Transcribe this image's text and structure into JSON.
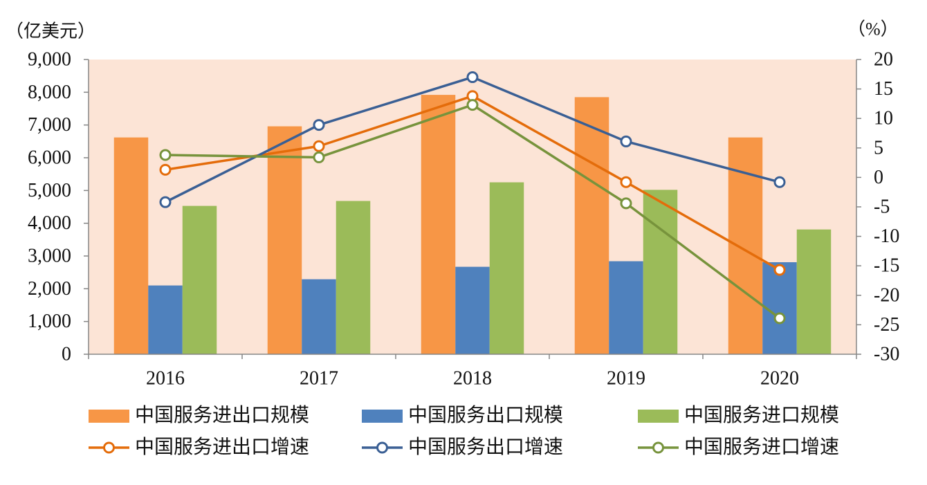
{
  "chart_data": {
    "type": "bar",
    "categories": [
      "2016",
      "2017",
      "2018",
      "2019",
      "2020"
    ],
    "left_axis": {
      "label": "（亿美元）",
      "ylim": [
        0,
        9000
      ],
      "tick_labels": [
        "0",
        "1,000",
        "2,000",
        "3,000",
        "4,000",
        "5,000",
        "6,000",
        "7,000",
        "8,000",
        "9,000"
      ]
    },
    "right_axis": {
      "label": "（%）",
      "ylim": [
        -30,
        20
      ],
      "tick_labels": [
        "-30",
        "-25",
        "-20",
        "-15",
        "-10",
        "-5",
        "0",
        "5",
        "10",
        "15",
        "20"
      ]
    },
    "series": [
      {
        "name": "中国服务进出口规模",
        "type": "bar",
        "axis": "left",
        "color": "#F79646",
        "values": [
          6620,
          6960,
          7920,
          7850,
          6620
        ]
      },
      {
        "name": "中国服务出口规模",
        "type": "bar",
        "axis": "left",
        "color": "#4F81BD",
        "values": [
          2100,
          2290,
          2670,
          2840,
          2810
        ]
      },
      {
        "name": "中国服务进口规模",
        "type": "bar",
        "axis": "left",
        "color": "#9BBB59",
        "values": [
          4530,
          4680,
          5250,
          5020,
          3810
        ]
      },
      {
        "name": "中国服务进出口增速",
        "type": "line",
        "axis": "right",
        "color": "#E46C0A",
        "values": [
          1.3,
          5.3,
          13.8,
          -0.8,
          -15.7
        ]
      },
      {
        "name": "中国服务出口增速",
        "type": "line",
        "axis": "right",
        "color": "#3A5F94",
        "values": [
          -4.2,
          8.9,
          17.0,
          6.1,
          -0.8
        ]
      },
      {
        "name": "中国服务进口增速",
        "type": "line",
        "axis": "right",
        "color": "#77933C",
        "values": [
          3.8,
          3.4,
          12.3,
          -4.4,
          -23.9
        ]
      }
    ],
    "legend": "bottom",
    "grid": false,
    "plot_background": "#FCE4D6",
    "axis_color": "#868686"
  }
}
